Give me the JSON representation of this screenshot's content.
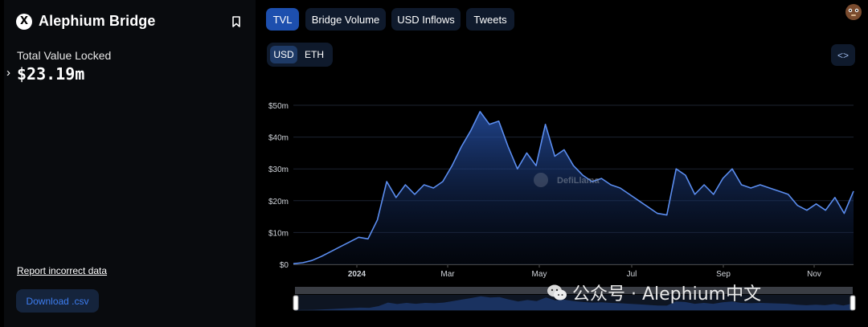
{
  "sidebar": {
    "logo_glyph": "X",
    "title": "Alephium Bridge",
    "tvl_label": "Total Value Locked",
    "tvl_value": "$23.19m",
    "report_link": "Report incorrect data",
    "download_button": "Download .csv"
  },
  "tabs": [
    {
      "label": "TVL",
      "active": true
    },
    {
      "label": "Bridge Volume",
      "active": false
    },
    {
      "label": "USD Inflows",
      "active": false
    },
    {
      "label": "Tweets",
      "active": false
    }
  ],
  "currency_toggle": [
    {
      "label": "USD",
      "active": true
    },
    {
      "label": "ETH",
      "active": false
    }
  ],
  "embed_button": "<>",
  "watermark_text": "公众号 · Alephium中文",
  "chart_data": {
    "type": "area",
    "title": "",
    "xlabel": "",
    "ylabel": "",
    "ylim": [
      0,
      50
    ],
    "y_ticks": [
      "$0",
      "$10m",
      "$20m",
      "$30m",
      "$40m",
      "$50m"
    ],
    "x_ticks": [
      "2024",
      "Mar",
      "May",
      "Jul",
      "Sep",
      "Nov"
    ],
    "grid": true,
    "chart_watermark": "DefiLlama",
    "series": [
      {
        "values": [
          0.2,
          0.5,
          1.2,
          2.5,
          4.0,
          5.5,
          7.0,
          8.5,
          8.0,
          14.0,
          26.0,
          21.0,
          25.0,
          22.0,
          25.0,
          24.0,
          26.0,
          31.0,
          37.0,
          42.0,
          48.0,
          44.0,
          45.0,
          37.0,
          30.0,
          35.0,
          31.0,
          44.0,
          34.0,
          36.0,
          31.0,
          28.0,
          26.0,
          27.0,
          25.0,
          24.0,
          22.0,
          20.0,
          18.0,
          16.0,
          15.5,
          30.0,
          28.0,
          22.0,
          25.0,
          22.0,
          27.0,
          30.0,
          25.0,
          24.0,
          25.0,
          24.0,
          23.0,
          22.0,
          18.5,
          17.0,
          19.0,
          17.0,
          21.0,
          16.0,
          23.0
        ],
        "color": "#5b8def"
      }
    ]
  },
  "colors": {
    "accent": "#1d4fae",
    "line": "#5b8def",
    "panel": "#090b0e"
  }
}
